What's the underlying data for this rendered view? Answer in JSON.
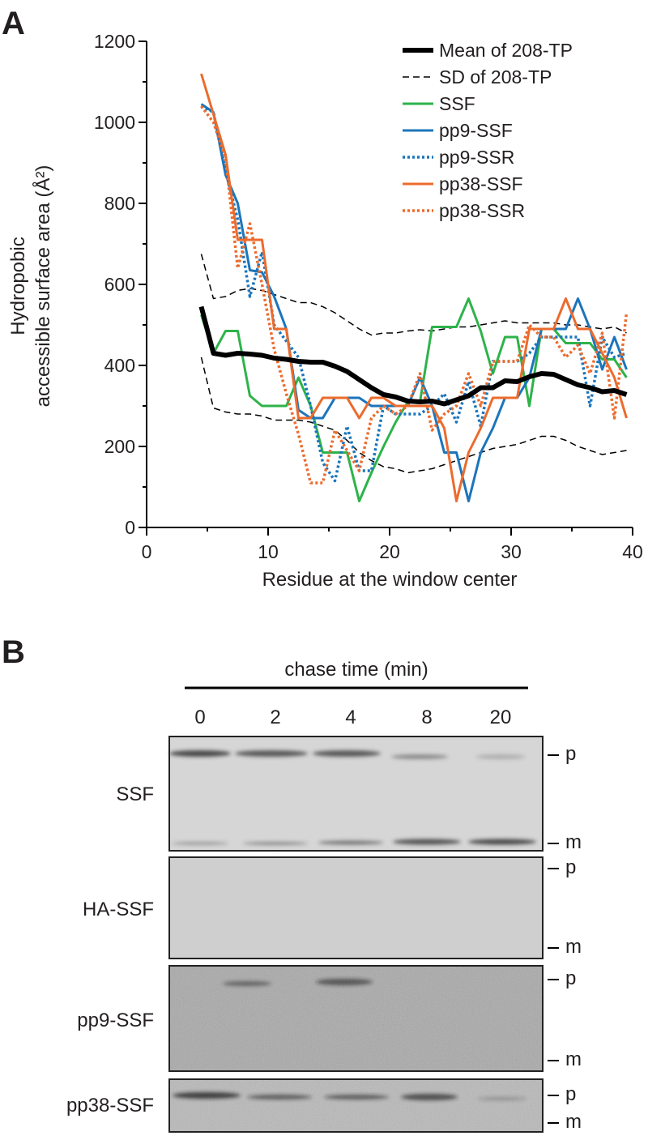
{
  "panel_labels": [
    "A",
    "B"
  ],
  "chart_data": {
    "type": "line",
    "xlabel": "Residue at the window center",
    "ylabel": [
      "Hydropobic",
      "accessible surface area (Å²)"
    ],
    "x": [
      4.5,
      5.5,
      6.5,
      7.5,
      8.5,
      9.5,
      10.5,
      11.5,
      12.5,
      13.5,
      14.5,
      15.5,
      16.5,
      17.5,
      18.5,
      19.5,
      20.5,
      21.5,
      22.5,
      23.5,
      24.5,
      25.5,
      26.5,
      27.5,
      28.5,
      29.5,
      30.5,
      31.5,
      32.5,
      33.5,
      34.5,
      35.5,
      36.5,
      37.5,
      38.5,
      39.5
    ],
    "xlim": [
      0,
      40
    ],
    "xticks": [
      0,
      10,
      20,
      30,
      40
    ],
    "xminorticks": [
      5,
      15,
      25,
      35
    ],
    "ylim": [
      0,
      1200
    ],
    "yticks": [
      0,
      200,
      400,
      600,
      800,
      1000,
      1200
    ],
    "yminorticks": [
      100,
      300,
      500,
      700,
      900,
      1100
    ],
    "legend": "upper right",
    "series": [
      {
        "name": "Mean of 208-TP",
        "color": "#000000",
        "style": "solid",
        "width": 6,
        "values": [
          545,
          430,
          425,
          430,
          428,
          425,
          418,
          415,
          410,
          408,
          408,
          398,
          385,
          365,
          345,
          328,
          322,
          312,
          310,
          312,
          305,
          315,
          325,
          345,
          345,
          362,
          360,
          372,
          380,
          378,
          365,
          352,
          345,
          335,
          338,
          328
        ]
      },
      {
        "name": "SD of 208-TP",
        "color": "#000000",
        "style": "dashed",
        "width": 1.5,
        "values": [
          675,
          565,
          570,
          585,
          590,
          585,
          575,
          565,
          555,
          555,
          545,
          530,
          510,
          490,
          475,
          480,
          480,
          485,
          488,
          485,
          490,
          495,
          495,
          500,
          505,
          510,
          505,
          505,
          505,
          505,
          500,
          500,
          495,
          490,
          495,
          480
        ],
        "values_lower": [
          420,
          295,
          285,
          280,
          280,
          275,
          265,
          265,
          265,
          260,
          250,
          240,
          215,
          185,
          165,
          150,
          145,
          135,
          140,
          145,
          155,
          165,
          175,
          185,
          195,
          200,
          205,
          215,
          225,
          225,
          215,
          200,
          190,
          180,
          185,
          190
        ]
      },
      {
        "name": "SSF",
        "color": "#2db34a",
        "style": "solid",
        "width": 3,
        "values": [
          525,
          430,
          485,
          485,
          325,
          300,
          300,
          300,
          370,
          300,
          185,
          185,
          185,
          65,
          135,
          200,
          260,
          310,
          310,
          495,
          495,
          495,
          565,
          485,
          380,
          470,
          470,
          300,
          490,
          490,
          455,
          455,
          455,
          415,
          415,
          370
        ]
      },
      {
        "name": "pp9-SSF",
        "color": "#1b75bb",
        "style": "solid",
        "width": 3,
        "values": [
          1045,
          1025,
          870,
          800,
          635,
          630,
          570,
          490,
          290,
          270,
          270,
          320,
          320,
          320,
          300,
          300,
          300,
          300,
          370,
          300,
          185,
          185,
          65,
          185,
          245,
          320,
          320,
          370,
          490,
          490,
          490,
          565,
          490,
          390,
          470,
          390
        ]
      },
      {
        "name": "pp9-SSR",
        "color": "#1b75bb",
        "style": "dotted",
        "width": 3.5,
        "values": [
          1040,
          1025,
          880,
          760,
          570,
          680,
          500,
          460,
          420,
          300,
          160,
          115,
          250,
          140,
          140,
          300,
          280,
          280,
          280,
          300,
          330,
          260,
          360,
          250,
          410,
          410,
          410,
          430,
          470,
          470,
          470,
          470,
          300,
          470,
          420,
          430
        ]
      },
      {
        "name": "pp38-SSF",
        "color": "#ec6b2d",
        "style": "solid",
        "width": 3,
        "values": [
          1120,
          1020,
          920,
          710,
          710,
          710,
          490,
          490,
          270,
          270,
          320,
          320,
          320,
          270,
          320,
          320,
          300,
          300,
          300,
          300,
          245,
          65,
          185,
          245,
          320,
          320,
          320,
          490,
          490,
          490,
          565,
          490,
          490,
          430,
          370,
          270
        ]
      },
      {
        "name": "pp38-SSR",
        "color": "#ec6b2d",
        "style": "dotted",
        "width": 3.5,
        "values": [
          1040,
          1000,
          910,
          640,
          750,
          600,
          440,
          330,
          230,
          110,
          110,
          240,
          190,
          140,
          270,
          300,
          280,
          300,
          380,
          240,
          280,
          300,
          380,
          300,
          410,
          410,
          410,
          500,
          470,
          470,
          420,
          450,
          380,
          480,
          270,
          530
        ]
      }
    ]
  },
  "gel": {
    "title": "chase time (min)",
    "lanes": [
      "0",
      "2",
      "4",
      "8",
      "20"
    ],
    "rows": [
      "SSF",
      "HA-SSF",
      "pp9-SSF",
      "pp38-SSF"
    ],
    "markers": [
      "p",
      "m"
    ]
  }
}
